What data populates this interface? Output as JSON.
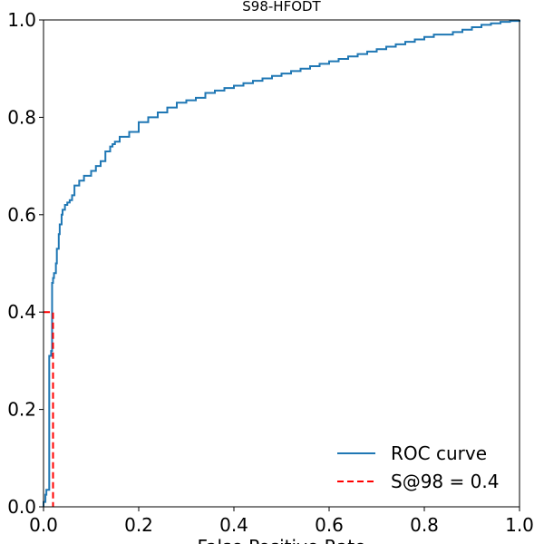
{
  "chart_data": {
    "type": "line",
    "title": "S98-HFODT",
    "xlabel": "False Positive Rate",
    "ylabel": "",
    "xlim": [
      0.0,
      1.0
    ],
    "ylim": [
      0.0,
      1.0
    ],
    "x_ticks": [
      "0.0",
      "0.2",
      "0.4",
      "0.6",
      "0.8",
      "1.0"
    ],
    "y_ticks": [
      "0.0",
      "0.2",
      "0.4",
      "0.6",
      "0.8",
      "1.0"
    ],
    "grid": false,
    "legend_position": "lower-right",
    "series": [
      {
        "name": "ROC curve",
        "color": "#1f77b4",
        "style": "solid",
        "x": [
          0.0,
          0.0,
          0.004,
          0.006,
          0.012,
          0.012,
          0.016,
          0.018,
          0.02,
          0.022,
          0.026,
          0.028,
          0.032,
          0.034,
          0.038,
          0.04,
          0.045,
          0.05,
          0.055,
          0.06,
          0.065,
          0.075,
          0.085,
          0.09,
          0.1,
          0.11,
          0.12,
          0.13,
          0.14,
          0.145,
          0.15,
          0.16,
          0.18,
          0.2,
          0.22,
          0.24,
          0.26,
          0.28,
          0.3,
          0.32,
          0.34,
          0.36,
          0.38,
          0.4,
          0.42,
          0.44,
          0.46,
          0.48,
          0.5,
          0.52,
          0.54,
          0.56,
          0.58,
          0.6,
          0.62,
          0.64,
          0.66,
          0.68,
          0.7,
          0.72,
          0.74,
          0.76,
          0.78,
          0.8,
          0.82,
          0.84,
          0.86,
          0.88,
          0.9,
          0.92,
          0.94,
          0.96,
          0.98,
          1.0
        ],
        "y": [
          0.0,
          0.01,
          0.025,
          0.035,
          0.04,
          0.31,
          0.32,
          0.46,
          0.47,
          0.48,
          0.5,
          0.53,
          0.56,
          0.58,
          0.6,
          0.61,
          0.62,
          0.625,
          0.63,
          0.64,
          0.66,
          0.67,
          0.68,
          0.68,
          0.69,
          0.7,
          0.71,
          0.73,
          0.74,
          0.745,
          0.75,
          0.76,
          0.77,
          0.79,
          0.8,
          0.81,
          0.82,
          0.83,
          0.835,
          0.84,
          0.85,
          0.855,
          0.86,
          0.865,
          0.87,
          0.875,
          0.88,
          0.885,
          0.89,
          0.895,
          0.9,
          0.905,
          0.91,
          0.915,
          0.92,
          0.925,
          0.93,
          0.935,
          0.94,
          0.945,
          0.95,
          0.955,
          0.96,
          0.965,
          0.97,
          0.97,
          0.975,
          0.98,
          0.985,
          0.99,
          0.993,
          0.996,
          0.998,
          1.0
        ]
      },
      {
        "name": "S@98 = 0.4",
        "color": "#ff0000",
        "style": "dashed",
        "x": [
          0.0,
          0.02,
          0.02
        ],
        "y": [
          0.4,
          0.4,
          0.0
        ]
      }
    ]
  }
}
